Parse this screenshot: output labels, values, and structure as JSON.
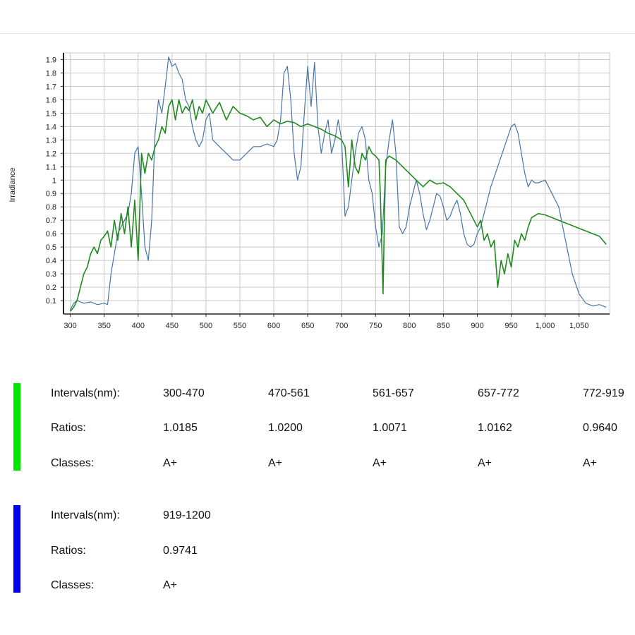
{
  "colors": {
    "simulator": "#1f8a1f",
    "reference": "#4a74a8",
    "legend_green": "#00e600",
    "legend_blue": "#0000ee",
    "grid": "#c8c8c8"
  },
  "chart_data": {
    "type": "line",
    "ylabel": "Irradiance",
    "xlabel": "",
    "xlim": [
      290,
      1095
    ],
    "ylim": [
      0,
      1.95
    ],
    "grid": true,
    "x_ticks": [
      300,
      350,
      400,
      450,
      500,
      550,
      600,
      650,
      700,
      750,
      800,
      850,
      900,
      950,
      1000,
      1050
    ],
    "x_tick_labels": [
      "300",
      "350",
      "400",
      "450",
      "500",
      "550",
      "600",
      "650",
      "700",
      "750",
      "800",
      "850",
      "900",
      "950",
      "1,000",
      "1,050"
    ],
    "y_ticks": [
      0.1,
      0.2,
      0.3,
      0.4,
      0.5,
      0.6,
      0.7,
      0.8,
      0.9,
      1,
      1.1,
      1.2,
      1.3,
      1.4,
      1.5,
      1.6,
      1.7,
      1.8,
      1.9
    ],
    "y_tick_labels": [
      "0.1",
      "0.2",
      "0.3",
      "0.4",
      "0.5",
      "0.6",
      "0.7",
      "0.8",
      "0.9",
      "1",
      "1.1",
      "1.2",
      "1.3",
      "1.4",
      "1.5",
      "1.6",
      "1.7",
      "1.8",
      "1.9"
    ],
    "series": [
      {
        "color": "#4a74a8",
        "x": [
          300,
          305,
          310,
          320,
          330,
          340,
          350,
          355,
          360,
          370,
          380,
          385,
          390,
          395,
          400,
          405,
          410,
          415,
          420,
          425,
          430,
          435,
          440,
          445,
          450,
          455,
          460,
          465,
          470,
          475,
          480,
          485,
          490,
          495,
          500,
          505,
          510,
          520,
          530,
          540,
          550,
          560,
          570,
          580,
          590,
          600,
          605,
          610,
          615,
          620,
          625,
          630,
          635,
          640,
          645,
          650,
          655,
          660,
          665,
          670,
          675,
          680,
          685,
          690,
          695,
          700,
          705,
          710,
          715,
          720,
          725,
          730,
          735,
          740,
          745,
          750,
          755,
          760,
          765,
          770,
          775,
          780,
          785,
          790,
          795,
          800,
          805,
          810,
          815,
          820,
          825,
          830,
          835,
          840,
          845,
          850,
          855,
          860,
          865,
          870,
          875,
          880,
          885,
          890,
          895,
          900,
          905,
          910,
          920,
          930,
          940,
          950,
          955,
          960,
          965,
          970,
          975,
          980,
          985,
          990,
          1000,
          1010,
          1020,
          1030,
          1040,
          1050,
          1060,
          1070,
          1080,
          1090
        ],
        "y": [
          0.03,
          0.08,
          0.1,
          0.08,
          0.09,
          0.07,
          0.08,
          0.07,
          0.3,
          0.6,
          0.7,
          0.75,
          0.9,
          1.2,
          1.25,
          0.9,
          0.5,
          0.4,
          0.7,
          1.35,
          1.6,
          1.5,
          1.7,
          1.92,
          1.85,
          1.87,
          1.8,
          1.75,
          1.6,
          1.55,
          1.4,
          1.3,
          1.25,
          1.3,
          1.45,
          1.5,
          1.3,
          1.25,
          1.2,
          1.15,
          1.15,
          1.2,
          1.25,
          1.25,
          1.27,
          1.25,
          1.3,
          1.45,
          1.8,
          1.85,
          1.6,
          1.2,
          1.0,
          1.1,
          1.5,
          1.85,
          1.55,
          1.88,
          1.4,
          1.2,
          1.35,
          1.45,
          1.2,
          1.3,
          1.45,
          1.3,
          0.73,
          0.8,
          1.0,
          1.2,
          1.35,
          1.4,
          1.3,
          1.0,
          0.9,
          0.65,
          0.5,
          0.6,
          1.1,
          1.3,
          1.45,
          1.2,
          0.65,
          0.6,
          0.65,
          0.8,
          0.9,
          1.0,
          0.9,
          0.75,
          0.63,
          0.7,
          0.8,
          0.9,
          0.88,
          0.8,
          0.7,
          0.73,
          0.8,
          0.85,
          0.75,
          0.6,
          0.52,
          0.5,
          0.52,
          0.6,
          0.65,
          0.75,
          0.95,
          1.1,
          1.25,
          1.4,
          1.42,
          1.35,
          1.2,
          1.05,
          0.95,
          1.0,
          0.98,
          0.98,
          1.0,
          0.9,
          0.8,
          0.55,
          0.3,
          0.15,
          0.08,
          0.06,
          0.07,
          0.05
        ]
      },
      {
        "color": "#1f8a1f",
        "x": [
          300,
          305,
          310,
          315,
          320,
          325,
          330,
          335,
          340,
          345,
          350,
          355,
          360,
          365,
          370,
          375,
          380,
          385,
          390,
          395,
          400,
          405,
          410,
          415,
          420,
          425,
          430,
          435,
          440,
          445,
          450,
          455,
          460,
          465,
          470,
          475,
          480,
          485,
          490,
          495,
          500,
          510,
          520,
          530,
          540,
          550,
          560,
          570,
          580,
          590,
          600,
          610,
          620,
          630,
          640,
          650,
          660,
          670,
          680,
          690,
          700,
          705,
          710,
          715,
          720,
          725,
          730,
          735,
          740,
          745,
          750,
          755,
          757,
          759,
          761,
          763,
          765,
          770,
          780,
          790,
          800,
          810,
          820,
          830,
          840,
          850,
          860,
          870,
          880,
          890,
          900,
          905,
          910,
          915,
          920,
          925,
          930,
          935,
          940,
          945,
          950,
          955,
          960,
          965,
          970,
          975,
          980,
          990,
          1000,
          1010,
          1020,
          1030,
          1040,
          1050,
          1060,
          1070,
          1080,
          1090
        ],
        "y": [
          0.02,
          0.05,
          0.1,
          0.2,
          0.3,
          0.35,
          0.45,
          0.5,
          0.45,
          0.55,
          0.58,
          0.62,
          0.5,
          0.7,
          0.55,
          0.75,
          0.6,
          0.8,
          0.5,
          0.85,
          0.4,
          1.2,
          1.05,
          1.2,
          1.15,
          1.25,
          1.3,
          1.4,
          1.35,
          1.55,
          1.6,
          1.45,
          1.6,
          1.5,
          1.55,
          1.52,
          1.6,
          1.45,
          1.55,
          1.5,
          1.6,
          1.5,
          1.58,
          1.45,
          1.55,
          1.5,
          1.48,
          1.45,
          1.47,
          1.4,
          1.45,
          1.42,
          1.44,
          1.43,
          1.4,
          1.42,
          1.4,
          1.38,
          1.35,
          1.33,
          1.3,
          1.25,
          0.95,
          1.3,
          1.1,
          1.05,
          1.2,
          1.15,
          1.25,
          1.2,
          1.18,
          1.15,
          0.9,
          0.55,
          0.15,
          0.7,
          1.15,
          1.18,
          1.15,
          1.1,
          1.05,
          1.0,
          0.95,
          1.0,
          0.97,
          0.98,
          0.95,
          0.9,
          0.85,
          0.75,
          0.65,
          0.7,
          0.55,
          0.6,
          0.5,
          0.55,
          0.2,
          0.4,
          0.3,
          0.45,
          0.35,
          0.55,
          0.5,
          0.6,
          0.55,
          0.65,
          0.72,
          0.75,
          0.74,
          0.72,
          0.7,
          0.68,
          0.66,
          0.64,
          0.62,
          0.6,
          0.58,
          0.52
        ]
      }
    ]
  },
  "table_green": {
    "row_labels": [
      "Intervals(nm):",
      "Ratios:",
      "Classes:"
    ],
    "intervals": [
      "300-470",
      "470-561",
      "561-657",
      "657-772",
      "772-919"
    ],
    "ratios": [
      "1.0185",
      "1.0200",
      "1.0071",
      "1.0162",
      "0.9640"
    ],
    "classes": [
      "A+",
      "A+",
      "A+",
      "A+",
      "A+"
    ]
  },
  "table_blue": {
    "row_labels": [
      "Intervals(nm):",
      "Ratios:",
      "Classes:"
    ],
    "intervals": [
      "919-1200"
    ],
    "ratios": [
      "0.9741"
    ],
    "classes": [
      "A+"
    ]
  }
}
